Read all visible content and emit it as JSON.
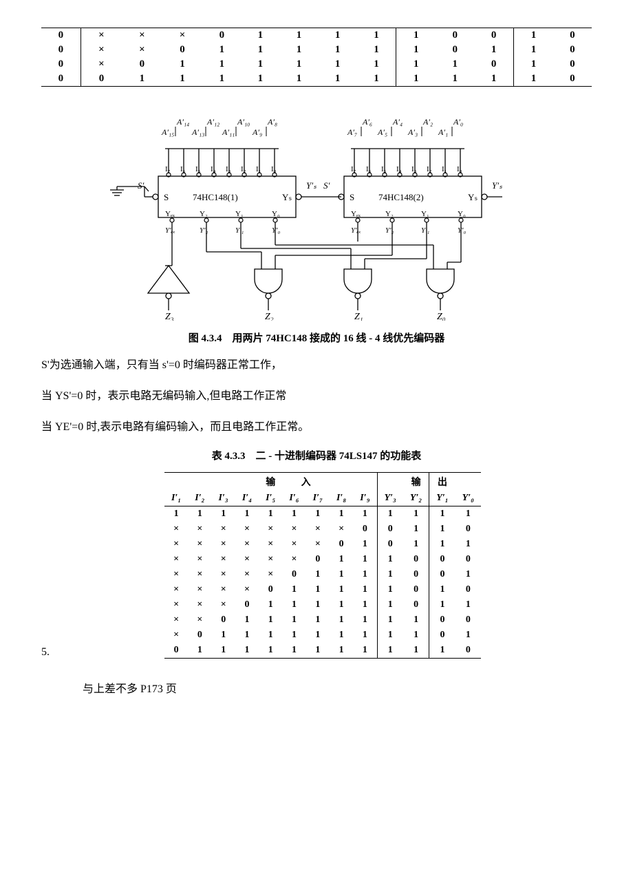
{
  "top_table": {
    "rows": [
      [
        "0",
        "×",
        "×",
        "×",
        "0",
        "1",
        "1",
        "1",
        "1",
        "1",
        "0",
        "0",
        "1",
        "0"
      ],
      [
        "0",
        "×",
        "×",
        "0",
        "1",
        "1",
        "1",
        "1",
        "1",
        "1",
        "0",
        "1",
        "1",
        "0"
      ],
      [
        "0",
        "×",
        "0",
        "1",
        "1",
        "1",
        "1",
        "1",
        "1",
        "1",
        "1",
        "0",
        "1",
        "0"
      ],
      [
        "0",
        "0",
        "1",
        "1",
        "1",
        "1",
        "1",
        "1",
        "1",
        "1",
        "1",
        "1",
        "1",
        "0"
      ]
    ],
    "section_starts": [
      0,
      1,
      9,
      12
    ]
  },
  "diagram": {
    "top_labels_1_row1": [
      "A′₁₄",
      "A′₁₂",
      "A′₁₀",
      "A′₈"
    ],
    "top_labels_1_row2": [
      "A′₁₅",
      "A′₁₃",
      "A′₁₁",
      "A′₉"
    ],
    "top_labels_2_row1": [
      "A′₆",
      "A′₄",
      "A′₂",
      "A′₀"
    ],
    "top_labels_2_row2": [
      "A′₇",
      "A′₅",
      "A′₃",
      "A′₁"
    ],
    "input_pins": [
      "I₇",
      "I₆",
      "I₅",
      "I₄",
      "I₃",
      "I₂",
      "I₁",
      "I₀"
    ],
    "chip1_label": "74HC148(1)",
    "chip2_label": "74HC148(2)",
    "s_label": "S",
    "s_prime": "S′",
    "ys_label": "Yₛ",
    "ys_prime": "Y′ₛ",
    "bottom_pins": [
      "Yₑₓ",
      "Y₂",
      "Y₁",
      "Y₀"
    ],
    "bottom_primes": [
      "Y′ₑₓ",
      "Y′₂",
      "Y′₁",
      "Y′₀"
    ],
    "z_labels": [
      "Z₃",
      "Z₂",
      "Z₁",
      "Z₀"
    ]
  },
  "caption_fig": "图 4.3.4　用两片 74HC148 接成的 16 线 - 4 线优先编码器",
  "para1": "S'为选通输入端，只有当 s'=0 时编码器正常工作，",
  "para2": "当 YS'=0 时，表示电路无编码输入,但电路工作正常",
  "para3": "当 YE'=0 时,表示电路有编码输入，而且电路工作正常。",
  "caption_tbl": "表 4.3.3　二 - 十进制编码器 74LS147 的功能表",
  "func_table": {
    "group_labels": [
      "输",
      "入",
      "输",
      "出"
    ],
    "headers": [
      "I′₁",
      "I′₂",
      "I′₃",
      "I′₄",
      "I′₅",
      "I′₆",
      "I′₇",
      "I′₈",
      "I′₉",
      "Y′₃",
      "Y′₂",
      "Y′₁",
      "Y′₀"
    ],
    "rows": [
      [
        "1",
        "1",
        "1",
        "1",
        "1",
        "1",
        "1",
        "1",
        "1",
        "1",
        "1",
        "1",
        "1"
      ],
      [
        "×",
        "×",
        "×",
        "×",
        "×",
        "×",
        "×",
        "×",
        "0",
        "0",
        "1",
        "1",
        "0"
      ],
      [
        "×",
        "×",
        "×",
        "×",
        "×",
        "×",
        "×",
        "0",
        "1",
        "0",
        "1",
        "1",
        "1"
      ],
      [
        "×",
        "×",
        "×",
        "×",
        "×",
        "×",
        "0",
        "1",
        "1",
        "1",
        "0",
        "0",
        "0"
      ],
      [
        "×",
        "×",
        "×",
        "×",
        "×",
        "0",
        "1",
        "1",
        "1",
        "1",
        "0",
        "0",
        "1"
      ],
      [
        "×",
        "×",
        "×",
        "×",
        "0",
        "1",
        "1",
        "1",
        "1",
        "1",
        "0",
        "1",
        "0"
      ],
      [
        "×",
        "×",
        "×",
        "0",
        "1",
        "1",
        "1",
        "1",
        "1",
        "1",
        "0",
        "1",
        "1"
      ],
      [
        "×",
        "×",
        "0",
        "1",
        "1",
        "1",
        "1",
        "1",
        "1",
        "1",
        "1",
        "0",
        "0"
      ],
      [
        "×",
        "0",
        "1",
        "1",
        "1",
        "1",
        "1",
        "1",
        "1",
        "1",
        "1",
        "0",
        "1"
      ],
      [
        "0",
        "1",
        "1",
        "1",
        "1",
        "1",
        "1",
        "1",
        "1",
        "1",
        "1",
        "1",
        "0"
      ]
    ]
  },
  "list_number": "5.",
  "footer": "与上差不多 P173 页"
}
